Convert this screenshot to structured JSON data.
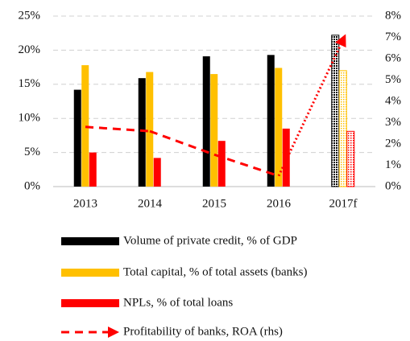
{
  "chart_data": {
    "type": "bar",
    "categories": [
      "2013",
      "2014",
      "2015",
      "2016",
      "2017f"
    ],
    "series": [
      {
        "name": "Volume of private credit, % of GDP",
        "color": "#000000",
        "values": [
          14.2,
          15.9,
          19.1,
          19.3,
          22.2
        ]
      },
      {
        "name": "Total capital, % of total assets (banks)",
        "color": "#ffc000",
        "values": [
          17.8,
          16.8,
          16.5,
          17.4,
          17.0
        ]
      },
      {
        "name": "NPLs, % of total loans",
        "color": "#ff0000",
        "values": [
          5.0,
          4.2,
          6.7,
          8.5,
          8.1
        ]
      },
      {
        "name": "Profitability of banks, ROA (rhs)",
        "color": "#ff0000",
        "type": "line",
        "axis": "y2",
        "values": [
          2.8,
          2.6,
          1.5,
          0.5,
          6.9
        ]
      }
    ],
    "ylim": [
      0,
      25
    ],
    "yticks": [
      {
        "value": 0,
        "label": "0%"
      },
      {
        "value": 5,
        "label": "5%"
      },
      {
        "value": 10,
        "label": "10%"
      },
      {
        "value": 15,
        "label": "15%"
      },
      {
        "value": 20,
        "label": "20%"
      },
      {
        "value": 25,
        "label": "25%"
      }
    ],
    "y2lim": [
      0,
      8
    ],
    "y2ticks": [
      {
        "value": 0,
        "label": "0%"
      },
      {
        "value": 1,
        "label": "1%"
      },
      {
        "value": 2,
        "label": "2%"
      },
      {
        "value": 3,
        "label": "3%"
      },
      {
        "value": 4,
        "label": "4%"
      },
      {
        "value": 5,
        "label": "5%"
      },
      {
        "value": 6,
        "label": "6%"
      },
      {
        "value": 7,
        "label": "7%"
      },
      {
        "value": 8,
        "label": "8%"
      }
    ],
    "grid": true,
    "hatched_last": true,
    "legend": "bottom"
  }
}
